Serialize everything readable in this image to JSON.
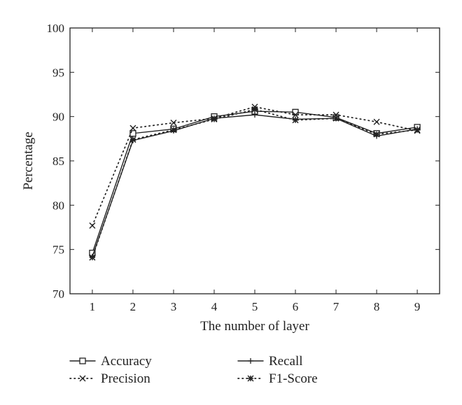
{
  "chart_data": {
    "type": "line",
    "title": "",
    "xlabel": "The number of layer",
    "ylabel": "Percentage",
    "x": [
      1,
      2,
      3,
      4,
      5,
      6,
      7,
      8,
      9
    ],
    "xticks": [
      "1",
      "2",
      "3",
      "4",
      "5",
      "6",
      "7",
      "8",
      "9"
    ],
    "xlim": [
      0.45,
      9.55
    ],
    "ylim": [
      70,
      100
    ],
    "yticks": [
      "70",
      "75",
      "80",
      "85",
      "90",
      "95",
      "100"
    ],
    "grid": false,
    "legend_position": "bottom",
    "series": [
      {
        "name": "Accuracy",
        "line": "solid",
        "marker": "square",
        "values": [
          74.6,
          88.1,
          88.6,
          90.0,
          90.6,
          90.5,
          89.9,
          88.1,
          88.8
        ]
      },
      {
        "name": "Recall",
        "line": "solid",
        "marker": "plus",
        "values": [
          74.2,
          87.3,
          88.4,
          89.8,
          90.2,
          89.7,
          89.8,
          87.8,
          88.6
        ]
      },
      {
        "name": "Precision",
        "line": "dotted",
        "marker": "x",
        "values": [
          77.7,
          88.7,
          89.3,
          89.8,
          91.1,
          90.2,
          90.2,
          89.4,
          88.4
        ]
      },
      {
        "name": "F1-Score",
        "line": "dotted",
        "marker": "star",
        "values": [
          74.1,
          87.4,
          88.5,
          89.7,
          90.8,
          89.6,
          89.8,
          88.0,
          88.5
        ]
      }
    ]
  }
}
